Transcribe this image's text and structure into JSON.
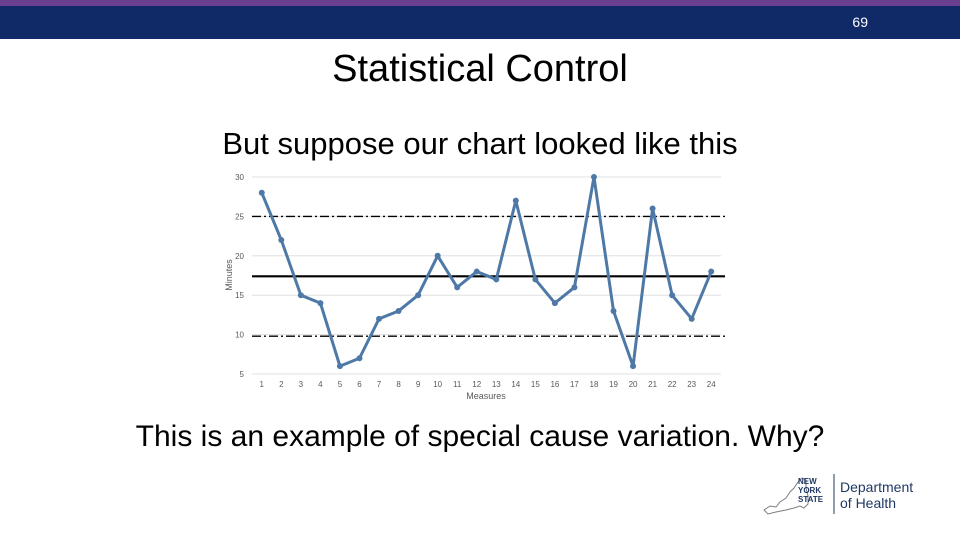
{
  "slide": {
    "number": "69",
    "title": "Statistical Control",
    "subtitle": "But suppose our chart looked like this",
    "question": "This is an example of special cause variation. Why?"
  },
  "logo": {
    "state_line1": "NEW",
    "state_line2": "YORK",
    "state_line3": "STATE",
    "dept_line1": "Department",
    "dept_line2": "of Health"
  },
  "colors": {
    "header_bar": "#0f2a66",
    "header_accent": "#6b3f8f",
    "series": "#4e79a7",
    "logo_navy": "#1f3864"
  },
  "chart_data": {
    "type": "line",
    "xlabel": "Measures",
    "ylabel": "Minutes",
    "ylim": [
      5,
      30
    ],
    "yticks": [
      5,
      10,
      15,
      20,
      25,
      30
    ],
    "x": [
      1,
      2,
      3,
      4,
      5,
      6,
      7,
      8,
      9,
      10,
      11,
      12,
      13,
      14,
      15,
      16,
      17,
      18,
      19,
      20,
      21,
      22,
      23,
      24
    ],
    "series": [
      {
        "values": [
          28,
          22,
          15,
          14,
          6,
          7,
          12,
          13,
          15,
          20,
          16,
          18,
          17,
          27,
          17,
          14,
          16,
          30,
          13,
          6,
          26,
          15,
          12,
          18
        ]
      }
    ],
    "reference_lines": [
      {
        "role": "center",
        "value": 17.4,
        "style": "solid"
      },
      {
        "role": "upper_limit",
        "value": 25.0,
        "style": "dash-dot"
      },
      {
        "role": "lower_limit",
        "value": 9.8,
        "style": "dash-dot"
      }
    ],
    "grid": "horizontal"
  }
}
